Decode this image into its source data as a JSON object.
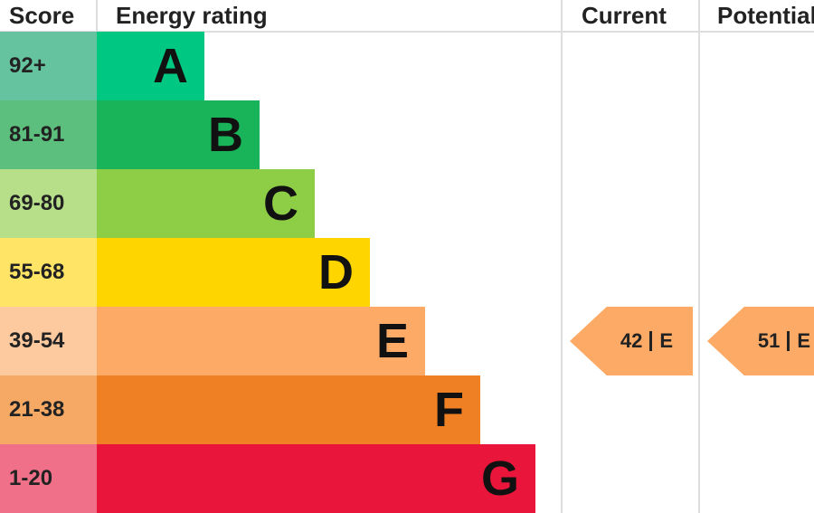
{
  "header": {
    "score": "Score",
    "rating": "Energy rating",
    "current": "Current",
    "potential": "Potential"
  },
  "rows": [
    {
      "score": "92+",
      "rating": "A"
    },
    {
      "score": "81-91",
      "rating": "B"
    },
    {
      "score": "69-80",
      "rating": "C"
    },
    {
      "score": "55-68",
      "rating": "D"
    },
    {
      "score": "39-54",
      "rating": "E"
    },
    {
      "score": "21-38",
      "rating": "F"
    },
    {
      "score": "1-20",
      "rating": "G"
    }
  ],
  "current": {
    "score": "42",
    "rating": "E"
  },
  "potential": {
    "score": "51",
    "rating": "E"
  }
}
